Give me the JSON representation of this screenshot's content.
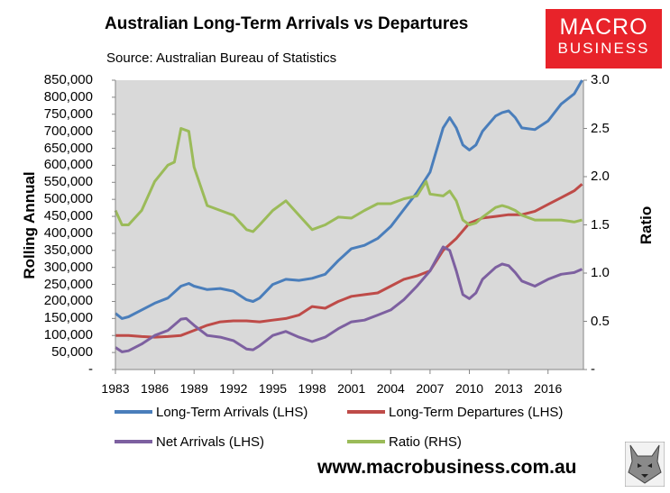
{
  "chart_data": {
    "type": "line",
    "title": "Australian Long-Term Arrivals vs Departures",
    "subtitle": "Source: Australian Bureau of Statistics",
    "ylabel_left": "Rolling Annual",
    "ylabel_right": "Ratio",
    "ylim_left": [
      0,
      850000
    ],
    "ylim_right": [
      0,
      3.0
    ],
    "xlim": [
      1983,
      2018.7
    ],
    "yticks_left": [
      "850,000",
      "800,000",
      "750,000",
      "700,000",
      "650,000",
      "600,000",
      "550,000",
      "500,000",
      "450,000",
      "400,000",
      "350,000",
      "300,000",
      "250,000",
      "200,000",
      "150,000",
      "100,000",
      "50,000",
      "-"
    ],
    "yticks_right": [
      "3.0",
      "2.5",
      "2.0",
      "1.5",
      "1.0",
      "0.5",
      "-"
    ],
    "xticks": [
      "1983",
      "1986",
      "1989",
      "1992",
      "1995",
      "1998",
      "2001",
      "2004",
      "2007",
      "2010",
      "2013",
      "2016"
    ],
    "series": [
      {
        "name": "Long-Term Arrivals (LHS)",
        "axis": "left",
        "color": "#4a7ebb",
        "x": [
          1983,
          1983.5,
          1984,
          1985,
          1986,
          1987,
          1988,
          1988.6,
          1989,
          1990,
          1991,
          1992,
          1993,
          1993.5,
          1994,
          1995,
          1996,
          1997,
          1998,
          1999,
          2000,
          2001,
          2002,
          2003,
          2004,
          2005,
          2006,
          2007,
          2008,
          2008.5,
          2009,
          2009.5,
          2010,
          2010.5,
          2011,
          2012,
          2012.5,
          2013,
          2013.5,
          2014,
          2015,
          2016,
          2017,
          2018,
          2018.6
        ],
        "values": [
          165000,
          150000,
          155000,
          175000,
          195000,
          210000,
          245000,
          253000,
          245000,
          235000,
          238000,
          230000,
          205000,
          200000,
          210000,
          250000,
          265000,
          262000,
          268000,
          280000,
          320000,
          355000,
          365000,
          385000,
          420000,
          470000,
          520000,
          580000,
          710000,
          740000,
          710000,
          660000,
          645000,
          660000,
          700000,
          745000,
          755000,
          760000,
          740000,
          710000,
          705000,
          730000,
          780000,
          810000,
          850000
        ]
      },
      {
        "name": "Long-Term Departures (LHS)",
        "axis": "left",
        "color": "#be4b48",
        "x": [
          1983,
          1984,
          1985,
          1986,
          1987,
          1988,
          1989,
          1990,
          1991,
          1992,
          1993,
          1994,
          1995,
          1996,
          1997,
          1998,
          1999,
          2000,
          2001,
          2002,
          2003,
          2004,
          2005,
          2006,
          2007,
          2008,
          2009,
          2010,
          2011,
          2012,
          2013,
          2014,
          2015,
          2016,
          2017,
          2018,
          2018.6
        ],
        "values": [
          100000,
          100000,
          97000,
          95000,
          97000,
          100000,
          115000,
          130000,
          140000,
          143000,
          143000,
          140000,
          145000,
          150000,
          160000,
          185000,
          180000,
          200000,
          215000,
          220000,
          225000,
          245000,
          265000,
          275000,
          290000,
          350000,
          385000,
          430000,
          445000,
          450000,
          455000,
          455000,
          465000,
          485000,
          505000,
          525000,
          545000
        ]
      },
      {
        "name": "Net Arrivals (LHS)",
        "axis": "left",
        "color": "#7d60a0",
        "x": [
          1983,
          1983.5,
          1984,
          1985,
          1986,
          1987,
          1988,
          1988.4,
          1989,
          1990,
          1991,
          1992,
          1993,
          1993.5,
          1994,
          1995,
          1996,
          1997,
          1998,
          1999,
          2000,
          2001,
          2002,
          2003,
          2004,
          2005,
          2006,
          2007,
          2008,
          2008.5,
          2009,
          2009.5,
          2010,
          2010.5,
          2011,
          2012,
          2012.5,
          2013,
          2013.5,
          2014,
          2015,
          2016,
          2017,
          2018,
          2018.6
        ],
        "values": [
          65000,
          52000,
          55000,
          75000,
          100000,
          115000,
          148000,
          150000,
          130000,
          100000,
          95000,
          85000,
          60000,
          58000,
          70000,
          100000,
          112000,
          95000,
          82000,
          95000,
          120000,
          140000,
          145000,
          160000,
          175000,
          205000,
          245000,
          290000,
          360000,
          350000,
          290000,
          220000,
          208000,
          225000,
          265000,
          300000,
          310000,
          305000,
          285000,
          260000,
          245000,
          265000,
          280000,
          285000,
          295000
        ]
      },
      {
        "name": "Ratio (RHS)",
        "axis": "right",
        "color": "#9bbb59",
        "x": [
          1983,
          1983.5,
          1984,
          1985,
          1986,
          1987,
          1987.5,
          1988,
          1988.6,
          1989,
          1990,
          1991,
          1992,
          1993,
          1993.5,
          1994,
          1995,
          1996,
          1997,
          1998,
          1999,
          2000,
          2001,
          2002,
          2003,
          2004,
          2005,
          2006,
          2006.7,
          2007,
          2008,
          2008.5,
          2009,
          2009.5,
          2010,
          2010.5,
          2011,
          2012,
          2012.5,
          2013,
          2013.5,
          2014,
          2015,
          2016,
          2017,
          2018,
          2018.6
        ],
        "values": [
          1.65,
          1.5,
          1.5,
          1.65,
          1.95,
          2.12,
          2.15,
          2.5,
          2.47,
          2.1,
          1.7,
          1.65,
          1.6,
          1.45,
          1.43,
          1.5,
          1.65,
          1.75,
          1.6,
          1.45,
          1.5,
          1.58,
          1.57,
          1.65,
          1.72,
          1.72,
          1.77,
          1.8,
          1.95,
          1.82,
          1.8,
          1.85,
          1.75,
          1.55,
          1.5,
          1.52,
          1.58,
          1.68,
          1.7,
          1.68,
          1.65,
          1.6,
          1.55,
          1.55,
          1.55,
          1.53,
          1.55
        ]
      }
    ]
  },
  "logo": {
    "line1": "MACRO",
    "line2": "BUSINESS"
  },
  "website": "www.macrobusiness.com.au"
}
